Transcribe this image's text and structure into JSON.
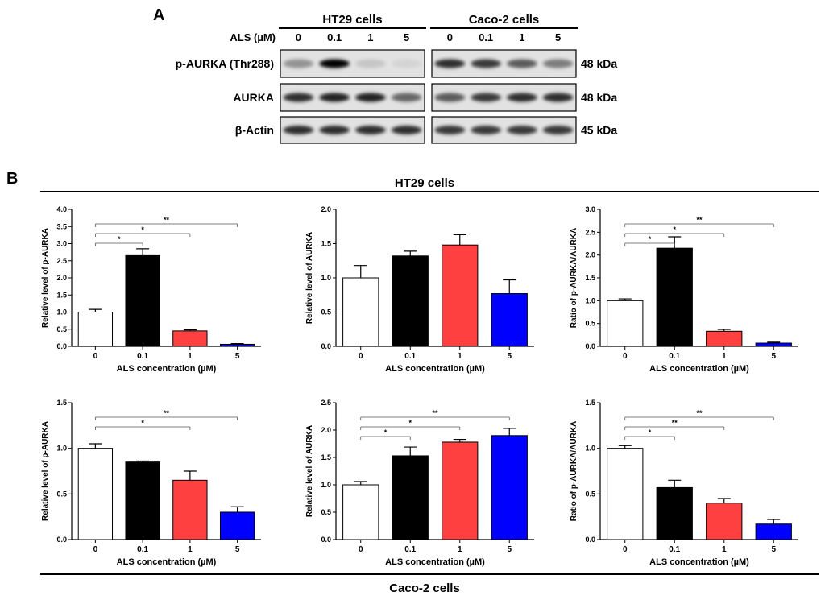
{
  "panel_a": {
    "label": "A",
    "row_label_header": "ALS (µM)",
    "cell_groups": [
      {
        "name": "HT29 cells",
        "doses": [
          "0",
          "0.1",
          "1",
          "5"
        ]
      },
      {
        "name": "Caco-2 cells",
        "doses": [
          "0",
          "0.1",
          "1",
          "5"
        ]
      }
    ],
    "blots": [
      {
        "protein": "p-AURKA (Thr288)",
        "size": "48 kDa",
        "intensity": [
          [
            0.35,
            1.0,
            0.12,
            0.06
          ],
          [
            0.8,
            0.75,
            0.6,
            0.45
          ]
        ]
      },
      {
        "protein": "AURKA",
        "size": "48 kDa",
        "intensity": [
          [
            0.8,
            0.85,
            0.85,
            0.55
          ],
          [
            0.6,
            0.75,
            0.8,
            0.8
          ]
        ]
      },
      {
        "protein": "β-Actin",
        "size": "45 kDa",
        "intensity": [
          [
            0.8,
            0.8,
            0.8,
            0.8
          ],
          [
            0.75,
            0.75,
            0.75,
            0.75
          ]
        ]
      }
    ]
  },
  "panel_b": {
    "label": "B",
    "top_group": "HT29 cells",
    "bottom_group": "Caco-2 cells"
  },
  "colors": {
    "c0": "#ffffff",
    "c01": "#000000",
    "c1": "#ff4040",
    "c5": "#0000ff"
  },
  "chart_data": [
    {
      "type": "bar",
      "group": "HT29 cells",
      "categories": [
        "0",
        "0.1",
        "1",
        "5"
      ],
      "values": [
        1.0,
        2.65,
        0.45,
        0.06
      ],
      "errors": [
        0.08,
        0.2,
        0.03,
        0.02
      ],
      "ylabel": "Relative level of p-AURKA",
      "xlabel": "ALS  concentration (µM)",
      "ylim": [
        0,
        4.0
      ],
      "yticks": [
        "0.0",
        "0.5",
        "1.0",
        "1.5",
        "2.0",
        "2.5",
        "3.0",
        "3.5",
        "4.0"
      ],
      "sig": [
        {
          "to": 1,
          "label": "*"
        },
        {
          "to": 2,
          "label": "*"
        },
        {
          "to": 3,
          "label": "**"
        }
      ]
    },
    {
      "type": "bar",
      "group": "HT29 cells",
      "categories": [
        "0",
        "0.1",
        "1",
        "5"
      ],
      "values": [
        1.0,
        1.32,
        1.48,
        0.77
      ],
      "errors": [
        0.18,
        0.07,
        0.15,
        0.2
      ],
      "ylabel": "Relative level of AURKA",
      "xlabel": "ALS  concentration (µM)",
      "ylim": [
        0,
        2.0
      ],
      "yticks": [
        "0.0",
        "0.5",
        "1.0",
        "1.5",
        "2.0"
      ],
      "sig": []
    },
    {
      "type": "bar",
      "group": "HT29 cells",
      "categories": [
        "0",
        "0.1",
        "1",
        "5"
      ],
      "values": [
        1.0,
        2.15,
        0.33,
        0.07
      ],
      "errors": [
        0.04,
        0.25,
        0.04,
        0.02
      ],
      "ylabel": "Ratio of p-AURKA/AURKA",
      "xlabel": "ALS  concentration (µM)",
      "ylim": [
        0,
        3.0
      ],
      "yticks": [
        "0.0",
        "0.5",
        "1.0",
        "1.5",
        "2.0",
        "2.5",
        "3.0"
      ],
      "sig": [
        {
          "to": 1,
          "label": "*"
        },
        {
          "to": 2,
          "label": "*"
        },
        {
          "to": 3,
          "label": "**"
        }
      ]
    },
    {
      "type": "bar",
      "group": "Caco-2 cells",
      "categories": [
        "0",
        "0.1",
        "1",
        "5"
      ],
      "values": [
        1.0,
        0.85,
        0.65,
        0.3
      ],
      "errors": [
        0.05,
        0.01,
        0.1,
        0.06
      ],
      "ylabel": "Relative level of p-AURKA",
      "xlabel": "ALS  concentration (µM)",
      "ylim": [
        0,
        1.5
      ],
      "yticks": [
        "0.0",
        "0.5",
        "1.0",
        "1.5"
      ],
      "sig": [
        {
          "to": 2,
          "label": "*"
        },
        {
          "to": 3,
          "label": "**"
        }
      ]
    },
    {
      "type": "bar",
      "group": "Caco-2 cells",
      "categories": [
        "0",
        "0.1",
        "1",
        "5"
      ],
      "values": [
        1.0,
        1.53,
        1.78,
        1.9
      ],
      "errors": [
        0.06,
        0.16,
        0.05,
        0.13
      ],
      "ylabel": "Relative level of AURKA",
      "xlabel": "ALS  concentration (µM)",
      "ylim": [
        0,
        2.5
      ],
      "yticks": [
        "0.0",
        "0.5",
        "1.0",
        "1.5",
        "2.0",
        "2.5"
      ],
      "sig": [
        {
          "to": 1,
          "label": "*"
        },
        {
          "to": 2,
          "label": "*"
        },
        {
          "to": 3,
          "label": "**"
        }
      ]
    },
    {
      "type": "bar",
      "group": "Caco-2 cells",
      "categories": [
        "0",
        "0.1",
        "1",
        "5"
      ],
      "values": [
        1.0,
        0.57,
        0.4,
        0.17
      ],
      "errors": [
        0.03,
        0.08,
        0.05,
        0.05
      ],
      "ylabel": "Ratio of p-AURKA/AURKA",
      "xlabel": "ALS  concentration (µM)",
      "ylim": [
        0,
        1.5
      ],
      "yticks": [
        "0.0",
        "0.5",
        "1.0",
        "1.5"
      ],
      "sig": [
        {
          "to": 1,
          "label": "*"
        },
        {
          "to": 2,
          "label": "**"
        },
        {
          "to": 3,
          "label": "**"
        }
      ]
    }
  ]
}
